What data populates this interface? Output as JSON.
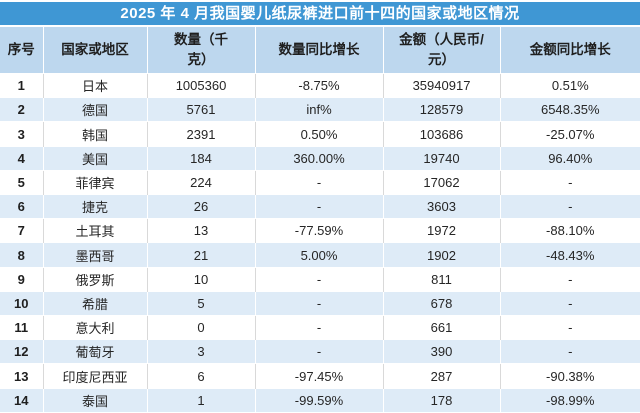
{
  "title": "2025 年 4 月我国婴儿纸尿裤进口前十四的国家或地区情况",
  "chart_data": {
    "type": "table",
    "title": "2025 年 4 月我国婴儿纸尿裤进口前十四的国家或地区情况",
    "columns": [
      "序号",
      "国家或地区",
      "数量（千克）",
      "数量同比增长",
      "金额（人民币/元）",
      "金额同比增长"
    ],
    "columns_display": [
      "序号",
      "国家或地区",
      "数量（千\n克）",
      "数量同比增长",
      "金额（人民币/\n元）",
      "金额同比增长"
    ],
    "rows": [
      [
        "1",
        "日本",
        "1005360",
        "-8.75%",
        "35940917",
        "0.51%"
      ],
      [
        "2",
        "德国",
        "5761",
        "inf%",
        "128579",
        "6548.35%"
      ],
      [
        "3",
        "韩国",
        "2391",
        "0.50%",
        "103686",
        "-25.07%"
      ],
      [
        "4",
        "美国",
        "184",
        "360.00%",
        "19740",
        "96.40%"
      ],
      [
        "5",
        "菲律宾",
        "224",
        "-",
        "17062",
        "-"
      ],
      [
        "6",
        "捷克",
        "26",
        "-",
        "3603",
        "-"
      ],
      [
        "7",
        "土耳其",
        "13",
        "-77.59%",
        "1972",
        "-88.10%"
      ],
      [
        "8",
        "墨西哥",
        "21",
        "5.00%",
        "1902",
        "-48.43%"
      ],
      [
        "9",
        "俄罗斯",
        "10",
        "-",
        "811",
        "-"
      ],
      [
        "10",
        "希腊",
        "5",
        "-",
        "678",
        "-"
      ],
      [
        "11",
        "意大利",
        "0",
        "-",
        "661",
        "-"
      ],
      [
        "12",
        "葡萄牙",
        "3",
        "-",
        "390",
        "-"
      ],
      [
        "13",
        "印度尼西亚",
        "6",
        "-97.45%",
        "287",
        "-90.38%"
      ],
      [
        "14",
        "泰国",
        "1",
        "-99.59%",
        "178",
        "-98.99%"
      ]
    ]
  },
  "colors": {
    "title_bar_bg": "#3F97D4",
    "title_text": "#FFFFFF",
    "header_bg": "#BDD7EE",
    "row_bg": "#FFFFFF",
    "row_alt_bg": "#DEEBF7",
    "text": "#262626",
    "grid_line_white_rows": "#D9D9D9",
    "grid_line_blue_rows": "#FFFFFF"
  }
}
